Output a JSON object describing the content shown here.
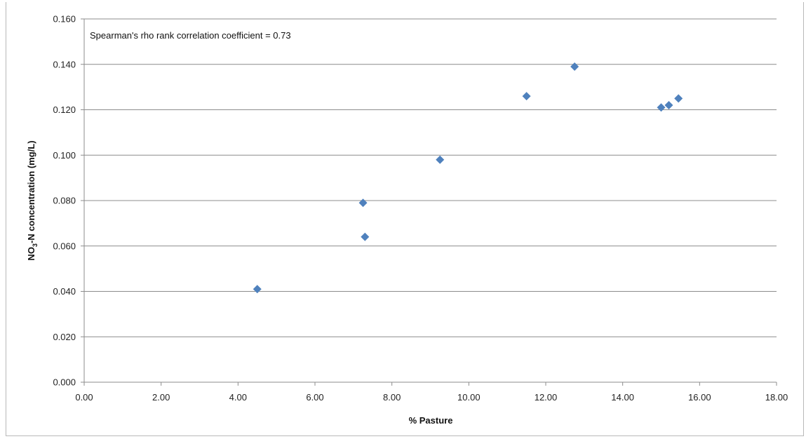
{
  "chart_data": {
    "type": "scatter",
    "title": "",
    "xlabel": "% Pasture",
    "ylabel_parts": {
      "pre": "NO",
      "sub": "3",
      "post": "-N concentration (mg/L)"
    },
    "xlim": [
      0,
      18
    ],
    "ylim": [
      0,
      0.16
    ],
    "x_ticks": [
      "0.00",
      "2.00",
      "4.00",
      "6.00",
      "8.00",
      "10.00",
      "12.00",
      "14.00",
      "16.00",
      "18.00"
    ],
    "y_ticks": [
      "0.000",
      "0.020",
      "0.040",
      "0.060",
      "0.080",
      "0.100",
      "0.120",
      "0.140",
      "0.160"
    ],
    "grid": "horizontal",
    "annotation": "Spearman's rho rank correlation coefficient  = 0.73",
    "marker_color": "#4f81bd",
    "marker": "diamond",
    "points": [
      {
        "x": 4.5,
        "y": 0.041
      },
      {
        "x": 7.25,
        "y": 0.079
      },
      {
        "x": 7.3,
        "y": 0.064
      },
      {
        "x": 9.25,
        "y": 0.098
      },
      {
        "x": 11.5,
        "y": 0.126
      },
      {
        "x": 12.75,
        "y": 0.139
      },
      {
        "x": 15.0,
        "y": 0.121
      },
      {
        "x": 15.2,
        "y": 0.122
      },
      {
        "x": 15.45,
        "y": 0.125
      }
    ]
  }
}
